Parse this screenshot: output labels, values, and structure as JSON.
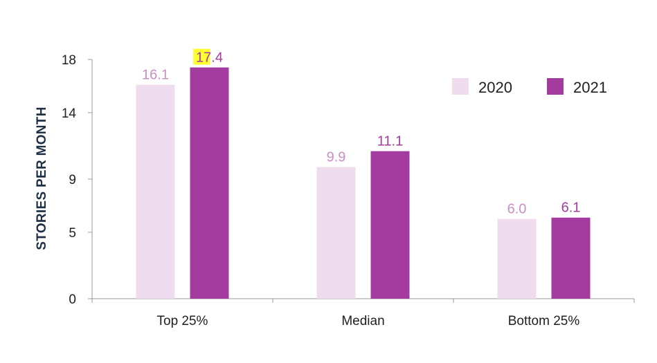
{
  "chart_data": {
    "type": "bar",
    "categories": [
      "Top 25%",
      "Median",
      "Bottom 25%"
    ],
    "series": [
      {
        "name": "2020",
        "values": [
          16.1,
          9.9,
          6.0
        ],
        "labels": [
          "16.1",
          "9.9",
          "6.0"
        ],
        "color": "#efdcee",
        "label_color": "#c790c4"
      },
      {
        "name": "2021",
        "values": [
          17.4,
          11.1,
          6.1
        ],
        "labels": [
          "17.4",
          "11.1",
          "6.1"
        ],
        "color": "#a33c9e",
        "label_color": "#a33c9e"
      }
    ],
    "ylabel": "STORIES PER MONTH",
    "xlabel": "",
    "ylim": [
      0,
      18
    ],
    "yticks": [
      "0",
      "5",
      "9",
      "14",
      "18"
    ],
    "grid": false,
    "legend": "top-right",
    "highlight": {
      "text": "17",
      "color": "#ffff33"
    }
  }
}
